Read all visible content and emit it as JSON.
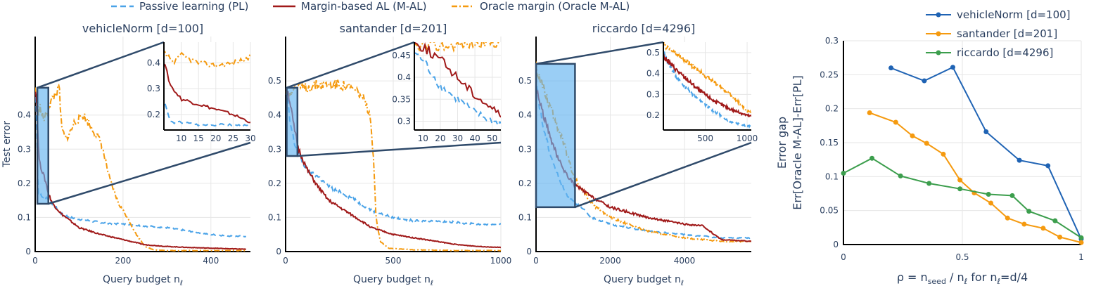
{
  "legend": {
    "items": [
      {
        "label": "Passive learning (PL)",
        "color": "#4aa3e8",
        "dash": "8,5"
      },
      {
        "label": "Margin-based AL (M-AL)",
        "color": "#a01919",
        "dash": ""
      },
      {
        "label": "Oracle margin (Oracle M-AL)",
        "color": "#f59a0f",
        "dash": "8,3,2,3"
      }
    ]
  },
  "chart_data": [
    {
      "type": "line",
      "title": "vehicleNorm [d=100]",
      "xlabel": "Query budget n",
      "xlabel_sub": "ℓ",
      "ylabel": "Test error",
      "xlim": [
        0,
        490
      ],
      "ylim": [
        0,
        0.63
      ],
      "xticks": [
        0,
        200,
        400
      ],
      "yticks": [
        0,
        0.1,
        0.2,
        0.3,
        0.4
      ],
      "yticklabels": [
        "0",
        "0.1",
        "0.2",
        "0.3",
        "0.4"
      ],
      "series": [
        {
          "name": "Passive learning (PL)",
          "x": [
            0,
            3,
            5,
            7,
            10,
            15,
            20,
            25,
            30,
            40,
            60,
            80,
            100,
            150,
            200,
            250,
            300,
            350,
            400,
            450,
            480
          ],
          "y": [
            0.48,
            0.42,
            0.25,
            0.17,
            0.17,
            0.16,
            0.16,
            0.16,
            0.155,
            0.14,
            0.11,
            0.1,
            0.095,
            0.085,
            0.08,
            0.075,
            0.07,
            0.06,
            0.05,
            0.045,
            0.045
          ]
        },
        {
          "name": "Margin-based AL (M-AL)",
          "x": [
            0,
            3,
            5,
            7,
            10,
            15,
            20,
            25,
            30,
            40,
            60,
            80,
            100,
            150,
            200,
            250,
            300,
            350,
            400,
            450,
            480
          ],
          "y": [
            0.48,
            0.45,
            0.4,
            0.31,
            0.26,
            0.24,
            0.22,
            0.2,
            0.17,
            0.14,
            0.11,
            0.09,
            0.07,
            0.05,
            0.035,
            0.02,
            0.015,
            0.012,
            0.01,
            0.008,
            0.007
          ]
        },
        {
          "name": "Oracle margin (Oracle M-AL)",
          "x": [
            0,
            5,
            8,
            10,
            15,
            20,
            25,
            30,
            40,
            55,
            60,
            70,
            80,
            90,
            100,
            110,
            120,
            130,
            150,
            170,
            190,
            210,
            230,
            250,
            270,
            300,
            400,
            480
          ],
          "y": [
            0.48,
            0.44,
            0.4,
            0.43,
            0.4,
            0.39,
            0.4,
            0.42,
            0.45,
            0.48,
            0.36,
            0.33,
            0.35,
            0.38,
            0.39,
            0.4,
            0.38,
            0.36,
            0.32,
            0.21,
            0.14,
            0.1,
            0.05,
            0.015,
            0.005,
            0.003,
            0.003,
            0.003
          ]
        }
      ],
      "zoom": {
        "xlim": [
          5,
          30
        ],
        "ylim": [
          0.14,
          0.48
        ],
        "xticks": [
          10,
          15,
          20,
          25,
          30
        ],
        "yticks": [
          0.2,
          0.3,
          0.4
        ]
      }
    },
    {
      "type": "line",
      "title": "santander [d=201]",
      "xlabel": "Query budget n",
      "xlabel_sub": "ℓ",
      "ylabel": "",
      "xlim": [
        0,
        1000
      ],
      "ylim": [
        0,
        0.63
      ],
      "xticks": [
        0,
        500,
        1000
      ],
      "yticks": [
        0,
        0.1,
        0.2,
        0.3,
        0.4,
        0.5
      ],
      "yticklabels": [
        "0",
        "0.1",
        "0.2",
        "0.3",
        "0.4",
        "0.5"
      ],
      "series": [
        {
          "name": "Passive learning (PL)",
          "x": [
            0,
            10,
            20,
            30,
            40,
            50,
            60,
            80,
            100,
            150,
            200,
            300,
            400,
            500,
            600,
            700,
            800,
            900,
            1000
          ],
          "y": [
            0.47,
            0.44,
            0.38,
            0.35,
            0.32,
            0.3,
            0.29,
            0.26,
            0.24,
            0.22,
            0.19,
            0.16,
            0.12,
            0.1,
            0.09,
            0.09,
            0.085,
            0.08,
            0.08
          ]
        },
        {
          "name": "Margin-based AL (M-AL)",
          "x": [
            0,
            10,
            20,
            30,
            40,
            50,
            60,
            80,
            100,
            150,
            200,
            300,
            400,
            500,
            600,
            700,
            800,
            900,
            1000
          ],
          "y": [
            0.48,
            0.47,
            0.44,
            0.4,
            0.36,
            0.33,
            0.3,
            0.27,
            0.24,
            0.19,
            0.15,
            0.11,
            0.07,
            0.05,
            0.04,
            0.03,
            0.02,
            0.015,
            0.012
          ]
        },
        {
          "name": "Oracle margin (Oracle M-AL)",
          "x": [
            0,
            20,
            50,
            100,
            150,
            200,
            250,
            300,
            330,
            360,
            390,
            400,
            410,
            420,
            440,
            480,
            600,
            800,
            1000
          ],
          "y": [
            0.47,
            0.47,
            0.48,
            0.48,
            0.49,
            0.49,
            0.49,
            0.48,
            0.47,
            0.45,
            0.4,
            0.34,
            0.25,
            0.1,
            0.03,
            0.01,
            0.005,
            0.003,
            0.003
          ]
        }
      ],
      "zoom": {
        "xlim": [
          5,
          55
        ],
        "ylim": [
          0.28,
          0.48
        ],
        "xticks": [
          10,
          20,
          30,
          40,
          50
        ],
        "yticks": [
          0.3,
          0.35,
          0.4,
          0.45
        ]
      }
    },
    {
      "type": "line",
      "title": "riccardo [d=4296]",
      "xlabel": "Query budget n",
      "xlabel_sub": "ℓ",
      "ylabel": "",
      "xlim": [
        0,
        5800
      ],
      "ylim": [
        0,
        0.63
      ],
      "xticks": [
        0,
        2000,
        4000
      ],
      "yticks": [
        0,
        0.1,
        0.2,
        0.3,
        0.4,
        0.5
      ],
      "yticklabels": [
        "0",
        "0.1",
        "0.2",
        "0.3",
        "0.4",
        "0.5"
      ],
      "series": [
        {
          "name": "Passive learning (PL)",
          "x": [
            0,
            100,
            200,
            400,
            600,
            800,
            1000,
            1500,
            2000,
            3000,
            4000,
            5000,
            5800
          ],
          "y": [
            0.5,
            0.42,
            0.36,
            0.28,
            0.22,
            0.17,
            0.15,
            0.1,
            0.08,
            0.06,
            0.05,
            0.04,
            0.04
          ]
        },
        {
          "name": "Margin-based AL (M-AL)",
          "x": [
            0,
            100,
            200,
            400,
            600,
            800,
            1000,
            1500,
            2000,
            3000,
            4000,
            4500,
            4800,
            5000,
            5800
          ],
          "y": [
            0.48,
            0.44,
            0.4,
            0.33,
            0.27,
            0.23,
            0.2,
            0.16,
            0.13,
            0.1,
            0.08,
            0.075,
            0.05,
            0.035,
            0.03
          ]
        },
        {
          "name": "Oracle margin (Oracle M-AL)",
          "x": [
            0,
            100,
            200,
            400,
            600,
            800,
            1000,
            1500,
            2000,
            3000,
            4000,
            5000,
            5800
          ],
          "y": [
            0.54,
            0.51,
            0.48,
            0.42,
            0.36,
            0.3,
            0.22,
            0.14,
            0.1,
            0.06,
            0.04,
            0.03,
            0.03
          ]
        }
      ],
      "zoom": {
        "xlim": [
          0,
          1050
        ],
        "ylim": [
          0.13,
          0.55
        ],
        "xticks": [
          500,
          1000
        ],
        "yticks": [
          0.2,
          0.3,
          0.4,
          0.5
        ]
      }
    },
    {
      "type": "line",
      "title": "",
      "xlabel": "ρ = n",
      "xlabel_rest": "seed",
      "xlabel_tail": " / n",
      "xlabel_tail_sub": "ℓ",
      "xlabel_end": " for n",
      "xlabel_end_sub": "ℓ",
      "xlabel_final": "=d/4",
      "ylabel": "Error gap",
      "ylabel2": "Err[Oracle M-AL]-Err[PL]",
      "xlim": [
        0,
        1
      ],
      "ylim": [
        0,
        0.3
      ],
      "xticks": [
        0,
        0.5,
        1
      ],
      "xticklabels": [
        "0",
        "0.5",
        "1"
      ],
      "yticks": [
        0,
        0.05,
        0.1,
        0.15,
        0.2,
        0.25,
        0.3
      ],
      "yticklabels": [
        "0",
        "0.05",
        "0.1",
        "0.15",
        "0.2",
        "0.25",
        "0.3"
      ],
      "series": [
        {
          "name": "vehicleNorm [d=100]",
          "color": "#1f63b4",
          "x": [
            0.2,
            0.34,
            0.46,
            0.6,
            0.74,
            0.86,
            1.0
          ],
          "y": [
            0.26,
            0.241,
            0.261,
            0.166,
            0.124,
            0.116,
            0.008
          ]
        },
        {
          "name": "santander [d=201]",
          "color": "#f59a0f",
          "x": [
            0.11,
            0.22,
            0.29,
            0.35,
            0.42,
            0.49,
            0.55,
            0.62,
            0.69,
            0.76,
            0.84,
            0.91,
            1.0
          ],
          "y": [
            0.194,
            0.18,
            0.16,
            0.149,
            0.133,
            0.095,
            0.076,
            0.061,
            0.039,
            0.03,
            0.024,
            0.011,
            0.003
          ]
        },
        {
          "name": "riccardo [d=4296]",
          "color": "#3c9e4d",
          "x": [
            0,
            0.12,
            0.24,
            0.36,
            0.49,
            0.61,
            0.71,
            0.78,
            0.89,
            1.0
          ],
          "y": [
            0.105,
            0.127,
            0.101,
            0.09,
            0.082,
            0.074,
            0.072,
            0.049,
            0.035,
            0.01
          ]
        }
      ]
    }
  ]
}
